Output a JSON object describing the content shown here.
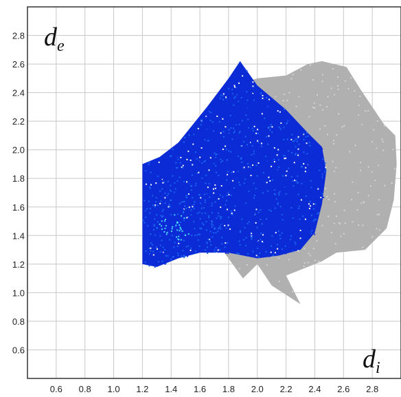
{
  "chart_data": {
    "type": "heatmap",
    "title": "",
    "xlabel": "d",
    "xlabel_sub": "i",
    "ylabel": "d",
    "ylabel_sub": "e",
    "xlim": [
      0.4,
      3.0
    ],
    "ylim": [
      0.4,
      3.0
    ],
    "grid": true,
    "x_ticks": [
      "0.6",
      "0.8",
      "1.0",
      "1.2",
      "1.4",
      "1.6",
      "1.8",
      "2.0",
      "2.2",
      "2.4",
      "2.6",
      "2.8"
    ],
    "y_ticks": [
      "0.6",
      "0.8",
      "1.0",
      "1.2",
      "1.4",
      "1.6",
      "1.8",
      "2.0",
      "2.2",
      "2.4",
      "2.6",
      "2.8"
    ],
    "colors": {
      "background_region": "#b0b0b0",
      "point_low": "#0b2bd6",
      "point_mid": "#1a66ee",
      "point_high": "#4ad8ff",
      "grid": "#c8c8c8",
      "frame": "#333333"
    },
    "series": [
      {
        "name": "",
        "role": "overall fingerprint (grey)",
        "outline": [
          [
            1.53,
            1.55
          ],
          [
            1.63,
            1.68
          ],
          [
            1.5,
            1.34
          ],
          [
            1.6,
            1.6
          ],
          [
            1.6,
            1.35
          ],
          [
            1.72,
            1.35
          ],
          [
            1.9,
            1.1
          ],
          [
            2.0,
            1.2
          ],
          [
            2.1,
            1.05
          ],
          [
            2.3,
            0.92
          ],
          [
            2.2,
            1.12
          ],
          [
            2.45,
            1.22
          ],
          [
            2.55,
            1.28
          ],
          [
            2.75,
            1.3
          ],
          [
            2.8,
            1.35
          ],
          [
            2.9,
            1.45
          ],
          [
            2.95,
            1.65
          ],
          [
            2.97,
            1.9
          ],
          [
            2.96,
            2.1
          ],
          [
            2.88,
            2.18
          ],
          [
            2.8,
            2.3
          ],
          [
            2.72,
            2.42
          ],
          [
            2.62,
            2.58
          ],
          [
            2.45,
            2.62
          ],
          [
            2.35,
            2.6
          ],
          [
            2.2,
            2.52
          ],
          [
            2.0,
            2.5
          ],
          [
            1.85,
            2.45
          ],
          [
            1.7,
            2.3
          ],
          [
            1.55,
            1.95
          ],
          [
            1.6,
            1.82
          ]
        ]
      },
      {
        "name": "",
        "role": "specific contacts (blue)",
        "outline": [
          [
            1.2,
            1.2
          ],
          [
            1.3,
            1.18
          ],
          [
            1.45,
            1.24
          ],
          [
            1.6,
            1.28
          ],
          [
            1.8,
            1.28
          ],
          [
            2.0,
            1.24
          ],
          [
            2.15,
            1.26
          ],
          [
            2.3,
            1.3
          ],
          [
            2.4,
            1.42
          ],
          [
            2.45,
            1.62
          ],
          [
            2.48,
            1.85
          ],
          [
            2.45,
            2.02
          ],
          [
            2.35,
            2.12
          ],
          [
            2.2,
            2.28
          ],
          [
            2.0,
            2.45
          ],
          [
            1.88,
            2.62
          ],
          [
            1.8,
            2.5
          ],
          [
            1.65,
            2.3
          ],
          [
            1.45,
            2.05
          ],
          [
            1.32,
            1.95
          ],
          [
            1.2,
            1.9
          ]
        ],
        "density_peak": [
          1.42,
          1.46
        ]
      }
    ]
  }
}
